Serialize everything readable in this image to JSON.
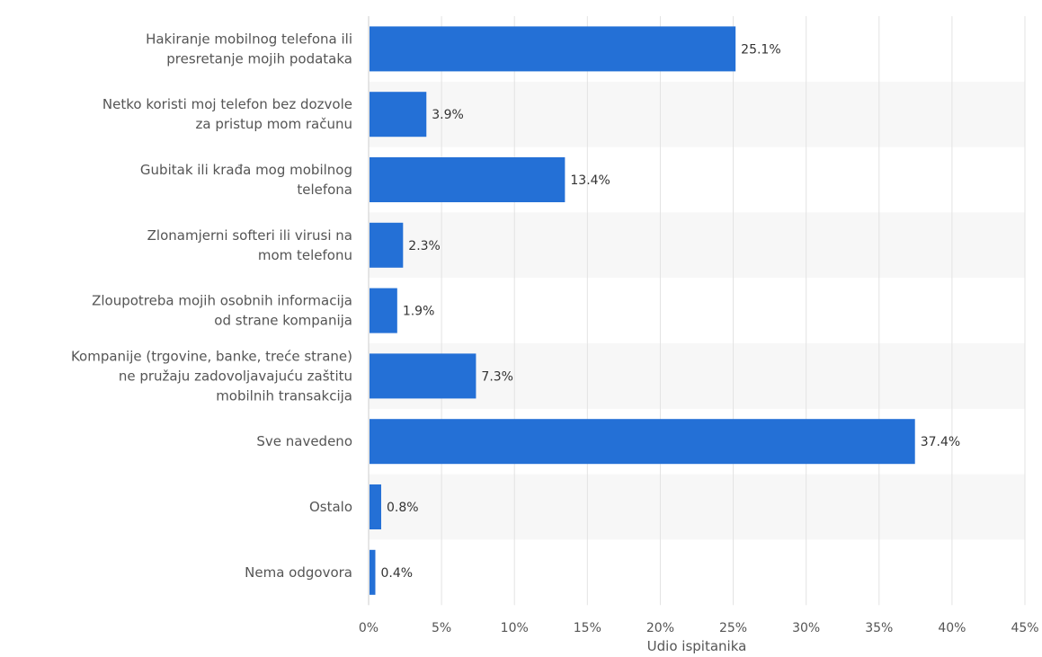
{
  "chart_data": {
    "type": "bar",
    "orientation": "horizontal",
    "categories": [
      [
        "Hakiranje mobilnog telefona ili",
        "presretanje mojih podataka"
      ],
      [
        "Netko koristi moj telefon bez dozvole",
        "za pristup mom računu"
      ],
      [
        "Gubitak ili krađa mog mobilnog",
        "telefona"
      ],
      [
        "Zlonamjerni softeri ili virusi na",
        "mom telefonu"
      ],
      [
        "Zloupotreba mojih osobnih informacija",
        "od strane kompanija"
      ],
      [
        "Kompanije (trgovine, banke, treće strane)",
        "ne pružaju zadovoljavajuću zaštitu",
        "mobilnih transakcija"
      ],
      [
        "Sve navedeno"
      ],
      [
        "Ostalo"
      ],
      [
        "Nema odgovora"
      ]
    ],
    "values": [
      25.1,
      3.9,
      13.4,
      2.3,
      1.9,
      7.3,
      37.4,
      0.8,
      0.4
    ],
    "value_labels": [
      "25.1%",
      "3.9%",
      "13.4%",
      "2.3%",
      "1.9%",
      "7.3%",
      "37.4%",
      "0.8%",
      "0.4%"
    ],
    "x_ticks": [
      0,
      5,
      10,
      15,
      20,
      25,
      30,
      35,
      40,
      45
    ],
    "x_tick_labels": [
      "0%",
      "5%",
      "10%",
      "15%",
      "20%",
      "25%",
      "30%",
      "35%",
      "40%",
      "45%"
    ],
    "xlabel": "Udio ispitanika",
    "ylabel": "",
    "title": "",
    "xlim": [
      0,
      45
    ],
    "grid": true,
    "legend": "none",
    "colors": {
      "bar": "#2470d6",
      "band": "#f7f7f7",
      "grid": "#e3e3e3",
      "axis": "#cccccc"
    }
  }
}
